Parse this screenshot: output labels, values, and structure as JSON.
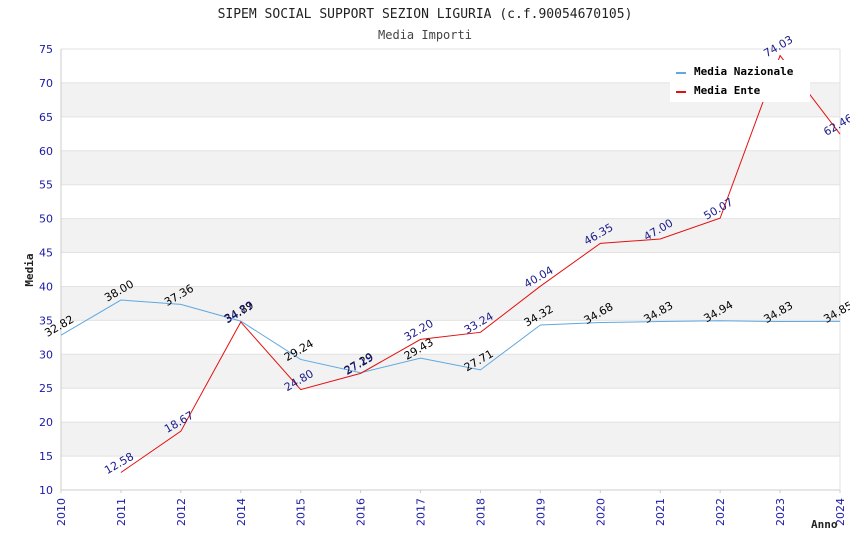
{
  "chart_data": {
    "type": "line",
    "title": "SIPEM SOCIAL SUPPORT SEZION LIGURIA (c.f.90054670105)",
    "subtitle": "Media Importi",
    "xlabel": "Anno",
    "ylabel": "Media",
    "categories": [
      "2010",
      "2011",
      "2012",
      "2014",
      "2015",
      "2016",
      "2017",
      "2018",
      "2019",
      "2020",
      "2021",
      "2022",
      "2023",
      "2024"
    ],
    "ylim": [
      10,
      75
    ],
    "yticks": [
      "10",
      "15",
      "20",
      "25",
      "30",
      "35",
      "40",
      "45",
      "50",
      "55",
      "60",
      "65",
      "70",
      "75"
    ],
    "grid": true,
    "legend_position": "top-right",
    "series": [
      {
        "name": "Media Nazionale",
        "color": "#5fa8e0",
        "label_color": "#000000",
        "values": [
          32.82,
          38.0,
          37.36,
          34.89,
          29.24,
          27.29,
          29.43,
          27.71,
          34.32,
          34.68,
          34.83,
          34.94,
          34.83,
          34.85
        ],
        "labels": [
          "32.82",
          "38.00",
          "37.36",
          "34.89",
          "29.24",
          "27.29",
          "29.43",
          "27.71",
          "34.32",
          "34.68",
          "34.83",
          "34.94",
          "34.83",
          "34.85"
        ]
      },
      {
        "name": "Media Ente",
        "color": "#e31010",
        "label_color": "#1a1a8c",
        "values": [
          null,
          12.58,
          18.67,
          34.77,
          24.8,
          27.19,
          32.2,
          33.24,
          40.04,
          46.35,
          47.0,
          50.07,
          74.03,
          62.46
        ],
        "labels": [
          null,
          "12.58",
          "18.67",
          "34.77",
          "24.80",
          "27.19",
          "32.20",
          "33.24",
          "40.04",
          "46.35",
          "47.00",
          "50.07",
          "74.03",
          "62.46"
        ]
      }
    ]
  }
}
